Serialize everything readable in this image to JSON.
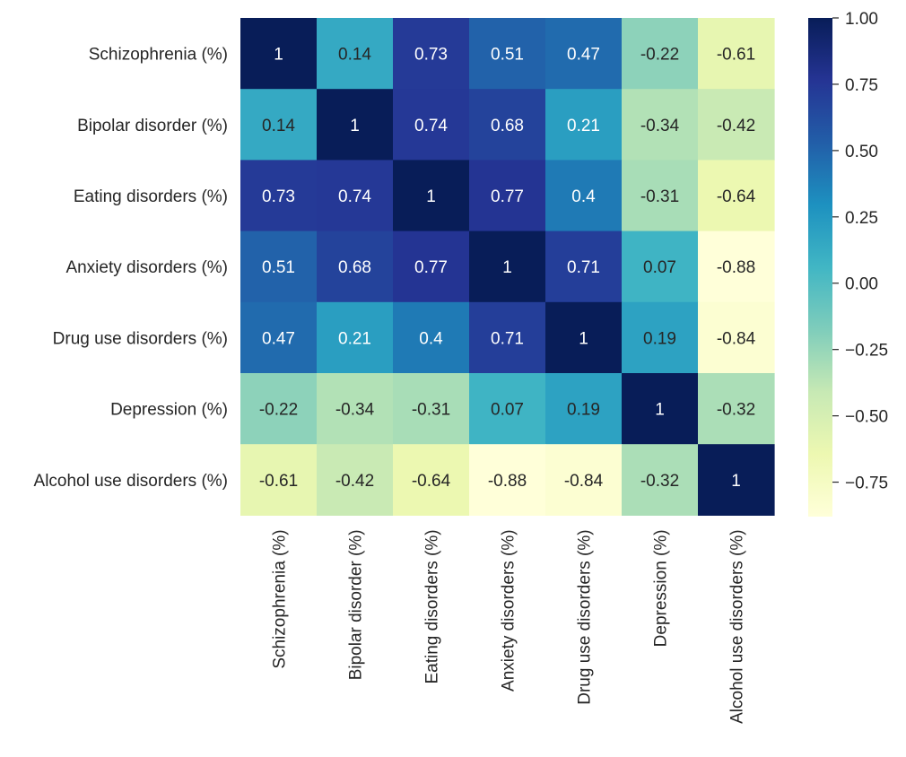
{
  "chart_data": {
    "type": "heatmap",
    "title": "",
    "xlabel": "",
    "ylabel": "",
    "rows": [
      "Schizophrenia (%)",
      "Bipolar disorder (%)",
      "Eating disorders (%)",
      "Anxiety disorders (%)",
      "Drug use disorders (%)",
      "Depression (%)",
      "Alcohol use disorders (%)"
    ],
    "cols": [
      "Schizophrenia (%)",
      "Bipolar disorder (%)",
      "Eating disorders (%)",
      "Anxiety disorders (%)",
      "Drug use disorders (%)",
      "Depression (%)",
      "Alcohol use disorders (%)"
    ],
    "values": [
      [
        1,
        0.14,
        0.73,
        0.51,
        0.47,
        -0.22,
        -0.61
      ],
      [
        0.14,
        1,
        0.74,
        0.68,
        0.21,
        -0.34,
        -0.42
      ],
      [
        0.73,
        0.74,
        1,
        0.77,
        0.4,
        -0.31,
        -0.64
      ],
      [
        0.51,
        0.68,
        0.77,
        1,
        0.71,
        0.07,
        -0.88
      ],
      [
        0.47,
        0.21,
        0.4,
        0.71,
        1,
        0.19,
        -0.84
      ],
      [
        -0.22,
        -0.34,
        -0.31,
        0.07,
        0.19,
        1,
        -0.32
      ],
      [
        -0.61,
        -0.42,
        -0.64,
        -0.88,
        -0.84,
        -0.32,
        1
      ]
    ],
    "annotations": [
      [
        "1",
        "0.14",
        "0.73",
        "0.51",
        "0.47",
        "-0.22",
        "-0.61"
      ],
      [
        "0.14",
        "1",
        "0.74",
        "0.68",
        "0.21",
        "-0.34",
        "-0.42"
      ],
      [
        "0.73",
        "0.74",
        "1",
        "0.77",
        "0.4",
        "-0.31",
        "-0.64"
      ],
      [
        "0.51",
        "0.68",
        "0.77",
        "1",
        "0.71",
        "0.07",
        "-0.88"
      ],
      [
        "0.47",
        "0.21",
        "0.4",
        "0.71",
        "1",
        "0.19",
        "-0.84"
      ],
      [
        "-0.22",
        "-0.34",
        "-0.31",
        "0.07",
        "0.19",
        "1",
        "-0.32"
      ],
      [
        "-0.61",
        "-0.42",
        "-0.64",
        "-0.88",
        "-0.84",
        "-0.32",
        "1"
      ]
    ],
    "colormap": "YlGnBu",
    "colormap_stops": [
      "#ffffd9",
      "#edf8b1",
      "#c7e9b4",
      "#7fcdbb",
      "#41b6c4",
      "#1d91c0",
      "#225ea8",
      "#253494",
      "#081d58"
    ],
    "vmin": -0.88,
    "vmax": 1.0,
    "colorbar": {
      "ticks": [
        1.0,
        0.75,
        0.5,
        0.25,
        0.0,
        -0.25,
        -0.5,
        -0.75
      ],
      "tick_labels": [
        "1.00",
        "0.75",
        "0.50",
        "0.25",
        "0.00",
        "−0.25",
        "−0.50",
        "−0.75"
      ]
    },
    "text_color_dark": "#262626",
    "text_color_light": "#ffffff",
    "grid": false,
    "legend": "colorbar-right"
  }
}
